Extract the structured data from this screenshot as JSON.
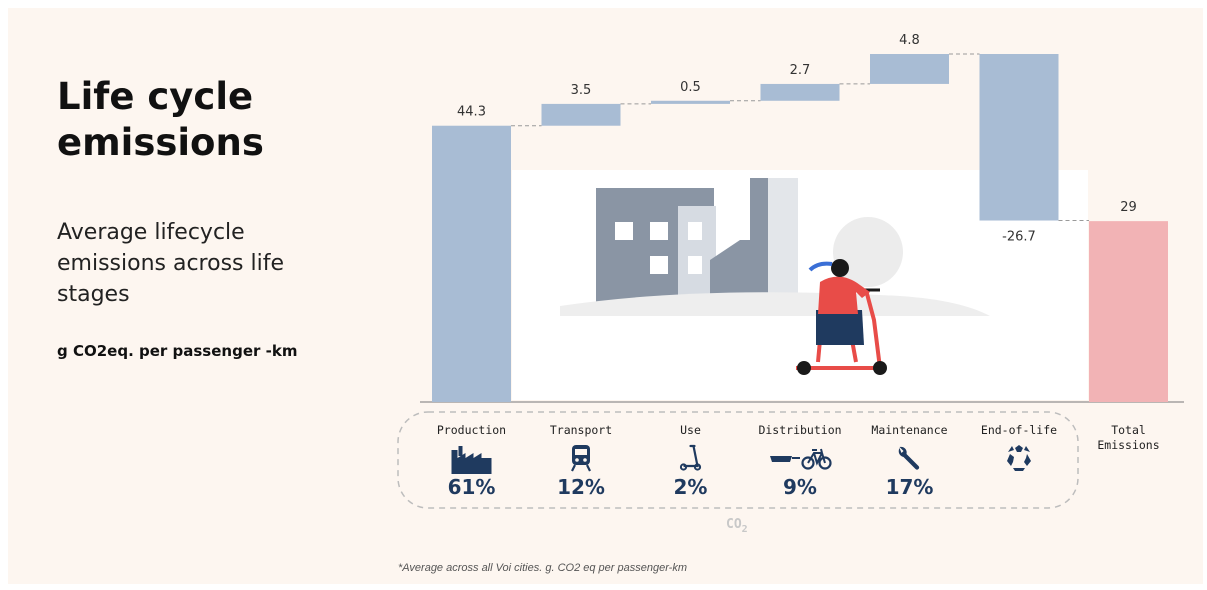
{
  "title": "Life cycle emissions",
  "subtitle": "Average lifecycle emissions across life stages",
  "unit_label": "g CO2eq. per passenger -km",
  "footnote": "*Average across all Voi cities. g. CO2 eq per passenger-km",
  "co2_mark": "CO",
  "co2_sub": "2",
  "colors": {
    "bar": "#a8bcd4",
    "total": "#f2b3b5",
    "icon": "#1f3a5f",
    "bg": "#fdf6f0"
  },
  "chart_data": {
    "type": "bar",
    "subtype": "waterfall",
    "categories": [
      "Production",
      "Transport",
      "Use",
      "Distribution",
      "Maintenance",
      "End-of-life",
      "Total Emissions"
    ],
    "values": [
      44.3,
      3.5,
      0.5,
      2.7,
      4.8,
      -26.7,
      29
    ],
    "value_labels": [
      "44.3",
      "3.5",
      "0.5",
      "2.7",
      "4.8",
      "-26.7",
      "29"
    ],
    "shares": [
      "61%",
      "12%",
      "2%",
      "9%",
      "17%",
      "",
      ""
    ],
    "icons": [
      "factory-icon",
      "train-icon",
      "scooter-icon",
      "trailer-bike-icon",
      "wrench-icon",
      "recycle-icon",
      ""
    ],
    "total_index": 6,
    "ylim": [
      0,
      55.8
    ]
  }
}
